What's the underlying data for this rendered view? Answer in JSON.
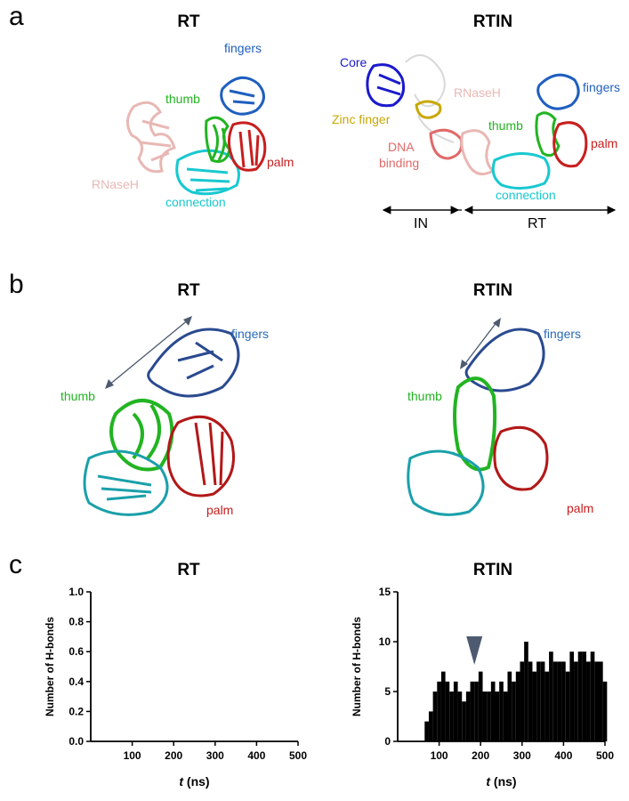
{
  "colors": {
    "fingers": "#1f5fbf",
    "thumb": "#22b422",
    "palm": "#c81e1e",
    "connection": "#18c8d0",
    "rnaseh": "#e8b8b4",
    "core": "#1a1acc",
    "zinc": "#c8a800",
    "dna": "#e06a6a",
    "bars": "#000000",
    "arrowhead": "#4d5a70"
  },
  "panel_a": {
    "letter": "a",
    "left_title": "RT",
    "right_title": "RTIN",
    "left_labels": {
      "fingers": "fingers",
      "thumb": "thumb",
      "rnaseh": "RNaseH",
      "palm": "palm",
      "connection": "connection"
    },
    "right_labels": {
      "core": "Core",
      "rnaseh": "RNaseH",
      "fingers": "fingers",
      "zinc": "Zinc finger",
      "thumb": "thumb",
      "dna_line1": "DNA",
      "dna_line2": "binding",
      "palm": "palm",
      "connection": "connection",
      "in_label": "IN",
      "rt_label": "RT"
    }
  },
  "panel_b": {
    "letter": "b",
    "left_title": "RT",
    "right_title": "RTIN",
    "labels": {
      "fingers": "fingers",
      "thumb": "thumb",
      "palm": "palm"
    }
  },
  "panel_c": {
    "letter": "c",
    "left_title": "RT",
    "right_title": "RTIN"
  },
  "chart_data": [
    {
      "type": "bar",
      "title": "RT",
      "xlabel": "t (ns)",
      "ylabel": "Number of H-bonds",
      "xlim": [
        0,
        500
      ],
      "ylim": [
        0,
        1.0
      ],
      "xticks": [
        100,
        200,
        300,
        400,
        500
      ],
      "yticks": [
        0.0,
        0.2,
        0.4,
        0.6,
        0.8,
        1.0
      ],
      "x": [],
      "values": []
    },
    {
      "type": "bar",
      "title": "RTIN",
      "xlabel": "t (ns)",
      "ylabel": "Number of H-bonds",
      "xlim": [
        0,
        500
      ],
      "ylim": [
        0,
        15
      ],
      "xticks": [
        100,
        200,
        300,
        400,
        500
      ],
      "yticks": [
        0,
        5,
        10,
        15
      ],
      "marker_x": 185,
      "x": [
        70,
        80,
        90,
        100,
        110,
        120,
        130,
        140,
        150,
        160,
        170,
        180,
        190,
        200,
        210,
        220,
        230,
        240,
        250,
        260,
        270,
        280,
        290,
        300,
        310,
        320,
        330,
        340,
        350,
        360,
        370,
        380,
        390,
        400,
        410,
        420,
        430,
        440,
        450,
        460,
        470,
        480,
        490,
        500
      ],
      "values": [
        2,
        3,
        5,
        6,
        7,
        6,
        5,
        6,
        5,
        4,
        5,
        6,
        6,
        7,
        5,
        5,
        6,
        5,
        6,
        5,
        7,
        6,
        7,
        8,
        10,
        8,
        7,
        8,
        8,
        7,
        9,
        8,
        8,
        8,
        7,
        9,
        8,
        9,
        9,
        8,
        9,
        8,
        8,
        6
      ]
    }
  ]
}
